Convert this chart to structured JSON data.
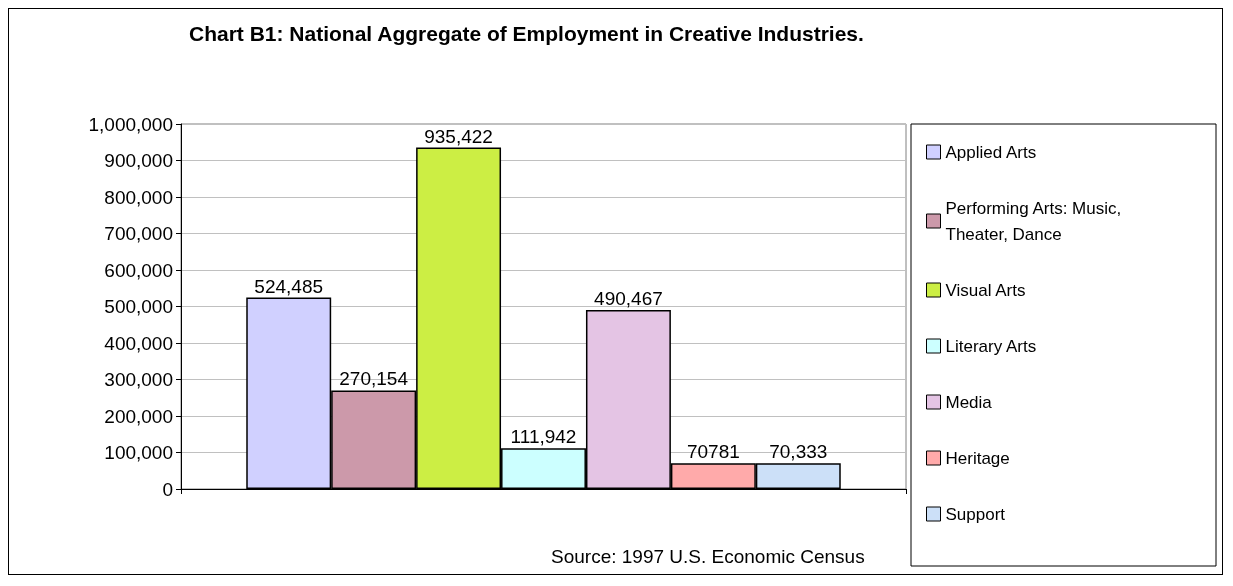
{
  "chart_data": {
    "type": "bar",
    "title": "Chart B1: National Aggregate of Employment in Creative Industries.",
    "categories": [
      null
    ],
    "series": [
      {
        "name": "Applied Arts",
        "color": "#d0d0ff",
        "values": [
          524485
        ],
        "value_labels": [
          "524,485"
        ]
      },
      {
        "name": "Performing Arts: Music, Theater, Dance",
        "color": "#cc99aa",
        "values": [
          270154
        ],
        "value_labels": [
          "270,154"
        ]
      },
      {
        "name": "Visual Arts",
        "color": "#ccee44",
        "values": [
          935422
        ],
        "value_labels": [
          "935,422"
        ]
      },
      {
        "name": "Literary Arts",
        "color": "#ccffff",
        "values": [
          111942
        ],
        "value_labels": [
          "111,942"
        ]
      },
      {
        "name": "Media",
        "color": "#e4c4e4",
        "values": [
          490467
        ],
        "value_labels": [
          "490,467"
        ]
      },
      {
        "name": "Heritage",
        "color": "#ffaaaa",
        "values": [
          70781
        ],
        "value_labels": [
          "70781"
        ]
      },
      {
        "name": "Support",
        "color": "#cce0f8",
        "values": [
          70333
        ],
        "value_labels": [
          "70,333"
        ]
      }
    ],
    "ylim": [
      0,
      1000000
    ],
    "yticks": [
      0,
      {
        "value": 100000,
        "label": "100,000"
      },
      {
        "value": 200000,
        "label": "200,000"
      },
      {
        "value": 300000,
        "label": "300,000"
      },
      {
        "value": 400000,
        "label": "400,000"
      },
      {
        "value": 500000,
        "label": "500,000"
      },
      {
        "value": 600000,
        "label": "600,000"
      },
      {
        "value": 700000,
        "label": "700,000"
      },
      {
        "value": 800000,
        "label": "800,000"
      },
      {
        "value": 900000,
        "label": "900,000"
      },
      {
        "value": 1000000,
        "label": "1,000,000"
      }
    ],
    "grid": "y",
    "legend": "right",
    "annotations": [
      "Source: 1997 U.S. Economic Census"
    ]
  }
}
